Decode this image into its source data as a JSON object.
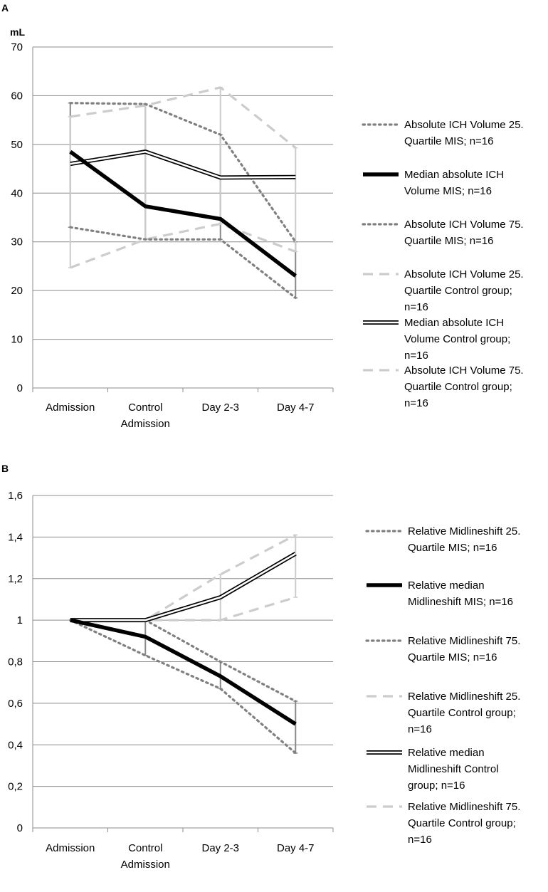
{
  "charts": [
    {
      "panel": "A",
      "unit": "mL",
      "type": "line",
      "ylim": [
        0,
        70
      ],
      "yticks": [
        "0",
        "10",
        "20",
        "30",
        "40",
        "50",
        "60",
        "70"
      ],
      "categories": [
        [
          "Admission"
        ],
        [
          "Control",
          "Admission"
        ],
        [
          "Day 2-3"
        ],
        [
          "Day 4-7"
        ]
      ],
      "series": [
        {
          "key": "mis_q25",
          "name_lines": [
            "Absolute ICH Volume 25.",
            "Quartile MIS; n=16"
          ],
          "style": "dot",
          "values": [
            33,
            30.5,
            30.5,
            18.5
          ]
        },
        {
          "key": "mis_med",
          "name_lines": [
            "Median absolute ICH",
            "Volume MIS; n=16"
          ],
          "style": "thick",
          "values": [
            48.5,
            37.3,
            34.7,
            23
          ]
        },
        {
          "key": "mis_q75",
          "name_lines": [
            "Absolute ICH Volume 75.",
            "Quartile MIS; n=16"
          ],
          "style": "dot",
          "values": [
            58.5,
            58.3,
            52,
            30
          ]
        },
        {
          "key": "ctl_q25",
          "name_lines": [
            "Absolute ICH Volume 25.",
            "Quartile Control group;",
            "n=16"
          ],
          "style": "dash",
          "values": [
            24.7,
            30.5,
            33.7,
            28
          ]
        },
        {
          "key": "ctl_med",
          "name_lines": [
            "Median absolute ICH",
            "Volume Control group;",
            "n=16"
          ],
          "style": "double",
          "values": [
            46,
            48.5,
            43.2,
            43.3
          ]
        },
        {
          "key": "ctl_q75",
          "name_lines": [
            "Absolute ICH Volume 75.",
            "Quartile Control group;",
            "n=16"
          ],
          "style": "dash",
          "values": [
            55.7,
            58,
            61.7,
            49.3
          ]
        }
      ],
      "error_ranges": [
        {
          "color": "#888888",
          "from": [
            33,
            30.5,
            30.5,
            18.5
          ],
          "to": [
            58.5,
            58.3,
            52,
            30
          ]
        },
        {
          "color": "#cccccc",
          "from": [
            24.7,
            30.5,
            33.7,
            28
          ],
          "to": [
            55.7,
            58,
            61.7,
            49.3
          ]
        }
      ]
    },
    {
      "panel": "B",
      "unit": "",
      "type": "line",
      "ylim": [
        0,
        1.6
      ],
      "yticks": [
        "0",
        "0,2",
        "0,4",
        "0,6",
        "0,8",
        "1",
        "1,2",
        "1,4",
        "1,6"
      ],
      "categories": [
        [
          "Admission"
        ],
        [
          "Control",
          "Admission"
        ],
        [
          "Day 2-3"
        ],
        [
          "Day 4-7"
        ]
      ],
      "series": [
        {
          "key": "mis_q25",
          "name_lines": [
            "Relative Midlineshift 25.",
            "Quartile MIS; n=16"
          ],
          "style": "dot",
          "values": [
            1,
            0.83,
            0.67,
            0.36
          ]
        },
        {
          "key": "mis_med",
          "name_lines": [
            "Relative median",
            "Midlineshift MIS; n=16"
          ],
          "style": "thick",
          "values": [
            1,
            0.92,
            0.73,
            0.5
          ]
        },
        {
          "key": "mis_q75",
          "name_lines": [
            "Relative Midlineshift 75.",
            "Quartile MIS; n=16"
          ],
          "style": "dot",
          "values": [
            1,
            1,
            0.8,
            0.61
          ]
        },
        {
          "key": "ctl_q25",
          "name_lines": [
            "Relative Midlineshift 25.",
            "Quartile Control group;",
            "n=16"
          ],
          "style": "dash",
          "values": [
            1,
            1,
            1,
            1.11
          ]
        },
        {
          "key": "ctl_med",
          "name_lines": [
            "Relative median",
            "Midlineshift Control",
            "group; n=16"
          ],
          "style": "double",
          "values": [
            1,
            1,
            1.11,
            1.32
          ]
        },
        {
          "key": "ctl_q75",
          "name_lines": [
            "Relative Midlineshift 75.",
            "Quartile Control group;",
            "n=16"
          ],
          "style": "dash",
          "values": [
            1,
            1,
            1.22,
            1.41
          ]
        }
      ],
      "error_ranges": [
        {
          "color": "#888888",
          "from": [
            1,
            0.83,
            0.67,
            0.36
          ],
          "to": [
            1,
            1,
            0.8,
            0.61
          ]
        },
        {
          "color": "#cccccc",
          "from": [
            1,
            1,
            1,
            1.11
          ],
          "to": [
            1,
            1,
            1.22,
            1.41
          ]
        }
      ]
    }
  ]
}
